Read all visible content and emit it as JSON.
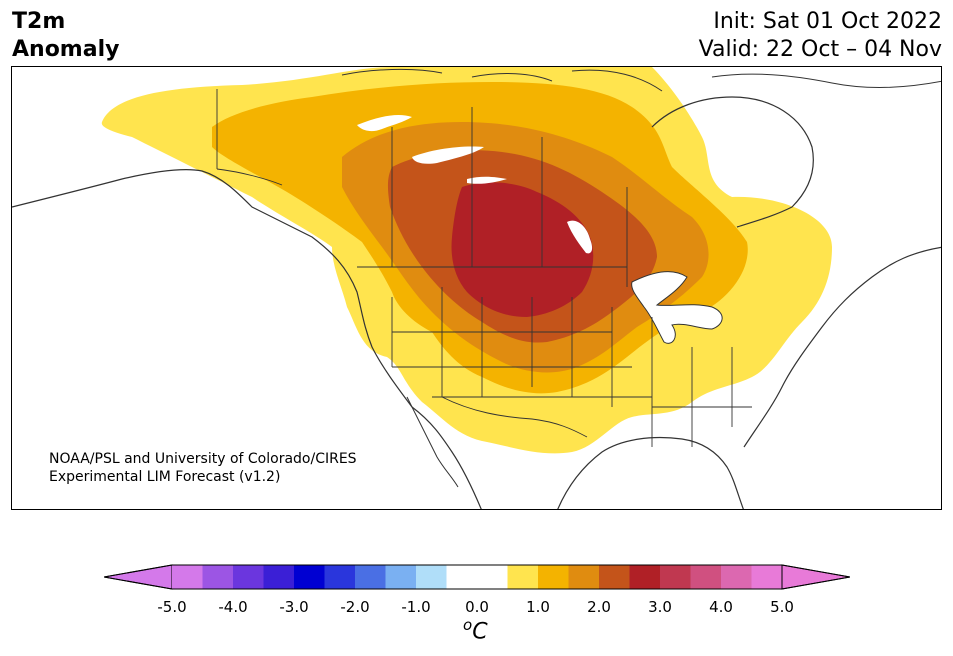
{
  "title": {
    "line1": "T2m",
    "line2": "Anomaly"
  },
  "info": {
    "init": "Init: Sat 01 Oct 2022",
    "valid": "Valid: 22 Oct – 04 Nov"
  },
  "credit": {
    "line1": "NOAA/PSL and University of Colorado/CIRES",
    "line2": "Experimental LIM Forecast (v1.2)"
  },
  "colorbar": {
    "unit_base": "C",
    "unit_sup": "o",
    "ticks": [
      "-5.0",
      "-4.0",
      "-3.0",
      "-2.0",
      "-1.0",
      "0.0",
      "1.0",
      "2.0",
      "3.0",
      "4.0",
      "5.0"
    ],
    "colors": [
      "#d479ea",
      "#9c55e4",
      "#6b36de",
      "#3b1fd6",
      "#0000d2",
      "#2a36dc",
      "#4a6fe4",
      "#7ab0f2",
      "#b0def9",
      "#ffffff",
      "#ffffff",
      "#ffe44e",
      "#f4b300",
      "#e08c10",
      "#c4541a",
      "#b02026",
      "#c03850",
      "#d05080",
      "#dc68b0",
      "#e87ad8"
    ],
    "extend_low_color": "#d479ea",
    "extend_high_color": "#e87ad8"
  },
  "anomaly_levels": [
    {
      "min": 0.5,
      "color": "#ffe44e"
    },
    {
      "min": 1.0,
      "color": "#f4b300"
    },
    {
      "min": 1.5,
      "color": "#e08c10"
    },
    {
      "min": 2.0,
      "color": "#c4541a"
    },
    {
      "min": 2.5,
      "color": "#b02026"
    }
  ]
}
